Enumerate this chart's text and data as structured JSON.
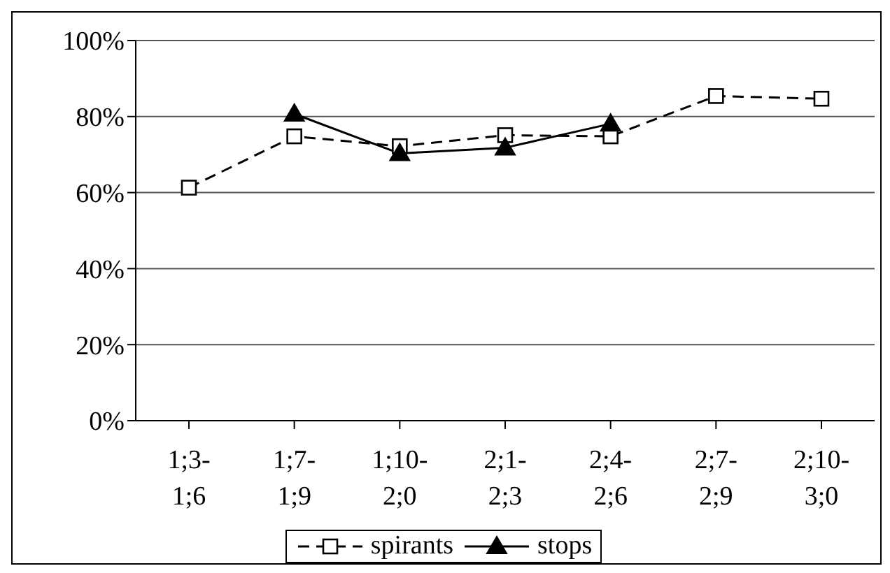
{
  "chart_data": {
    "type": "line",
    "categories": [
      "1;3-\n1;6",
      "1;7-\n1;9",
      "1;10-\n2;0",
      "2;1-\n2;3",
      "2;4-\n2;6",
      "2;7-\n2;9",
      "2;10-\n3;0"
    ],
    "series": [
      {
        "name": "spirants",
        "color": "#000000",
        "line_style": "dashed",
        "marker": "square",
        "values": [
          61.3,
          74.8,
          72.2,
          75.1,
          74.8,
          85.4,
          84.7
        ]
      },
      {
        "name": "stops",
        "color": "#000000",
        "line_style": "solid",
        "marker": "triangle",
        "values": [
          null,
          80.7,
          70.3,
          71.8,
          78.1,
          null,
          null
        ]
      }
    ],
    "ylim": [
      0,
      100
    ],
    "yticks": [
      {
        "value": 0,
        "label": "0%"
      },
      {
        "value": 20,
        "label": "20%"
      },
      {
        "value": 40,
        "label": "40%"
      },
      {
        "value": 60,
        "label": "60%"
      },
      {
        "value": 80,
        "label": "80%"
      },
      {
        "value": 100,
        "label": "100%"
      }
    ],
    "grid": "y",
    "legend": "bottom"
  }
}
